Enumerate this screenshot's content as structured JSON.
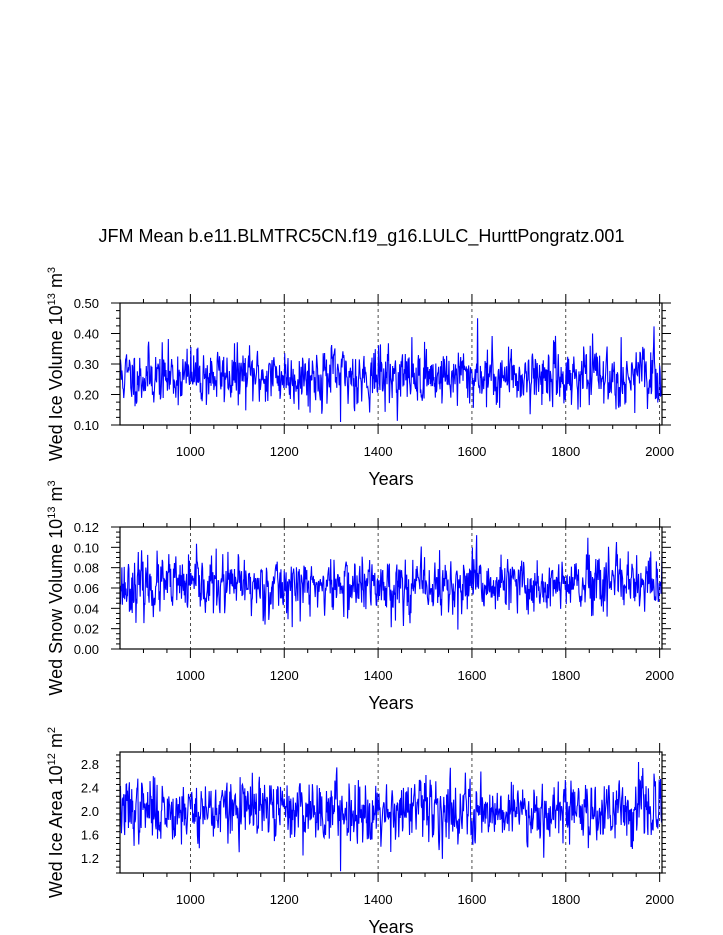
{
  "title": "JFM Mean b.e11.BLMTRC5CN.f19_g16.LULC_HurttPongratz.001",
  "chart_data": [
    {
      "type": "line",
      "xlabel": "Years",
      "ylabel": "Wed Ice Volume 10",
      "ylabel_sup": "13",
      "ylabel_unit": "m",
      "ylabel_unit_sup": "3",
      "xlim": [
        850,
        2005
      ],
      "ylim": [
        0.1,
        0.5
      ],
      "xticks": [
        1000,
        1200,
        1400,
        1600,
        1800,
        2000
      ],
      "yticks": [
        0.1,
        0.2,
        0.3,
        0.4,
        0.5
      ],
      "ytick_labels": [
        "0.10",
        "0.20",
        "0.30",
        "0.40",
        "0.50"
      ],
      "grid_x": [
        1000,
        1200,
        1400,
        1600,
        1800,
        2000
      ],
      "series": [
        {
          "name": "Wed Ice Volume",
          "color": "#0000ff",
          "mean": 0.26,
          "std": 0.05,
          "seed": 11
        }
      ],
      "approximate_extremes": {
        "max_year": 1612,
        "max": 0.45,
        "min_year": 1320,
        "min": 0.11
      }
    },
    {
      "type": "line",
      "xlabel": "Years",
      "ylabel": "Wed Snow Volume 10",
      "ylabel_sup": "13",
      "ylabel_unit": "m",
      "ylabel_unit_sup": "3",
      "xlim": [
        850,
        2005
      ],
      "ylim": [
        0.0,
        0.12
      ],
      "xticks": [
        1000,
        1200,
        1400,
        1600,
        1800,
        2000
      ],
      "yticks": [
        0.0,
        0.02,
        0.04,
        0.06,
        0.08,
        0.1,
        0.12
      ],
      "ytick_labels": [
        "0.00",
        "0.02",
        "0.04",
        "0.06",
        "0.08",
        "0.10",
        "0.12"
      ],
      "grid_x": [
        1000,
        1200,
        1400,
        1600,
        1800,
        2000
      ],
      "series": [
        {
          "name": "Wed Snow Volume",
          "color": "#0000ff",
          "mean": 0.062,
          "std": 0.015,
          "seed": 23
        }
      ],
      "approximate_extremes": {
        "max_year": 1610,
        "max": 0.112,
        "min_year": 1570,
        "min": 0.019
      }
    },
    {
      "type": "line",
      "xlabel": "Years",
      "ylabel": "Wed Ice Area 10",
      "ylabel_sup": "12",
      "ylabel_unit": "m",
      "ylabel_unit_sup": "2",
      "xlim": [
        850,
        2005
      ],
      "ylim": [
        0.95,
        3.0
      ],
      "xticks": [
        1000,
        1200,
        1400,
        1600,
        1800,
        2000
      ],
      "yticks": [
        1.2,
        1.6,
        2.0,
        2.4,
        2.8
      ],
      "ytick_labels": [
        "1.2",
        "1.6",
        "2.0",
        "2.4",
        "2.8"
      ],
      "grid_x": [
        1000,
        1200,
        1400,
        1600,
        1800,
        2000
      ],
      "series": [
        {
          "name": "Wed Ice Area",
          "color": "#0000ff",
          "mean": 2.02,
          "std": 0.28,
          "seed": 37
        }
      ],
      "approximate_extremes": {
        "max_year": 1955,
        "max": 2.83,
        "min_year": 1320,
        "min": 0.98
      }
    }
  ]
}
